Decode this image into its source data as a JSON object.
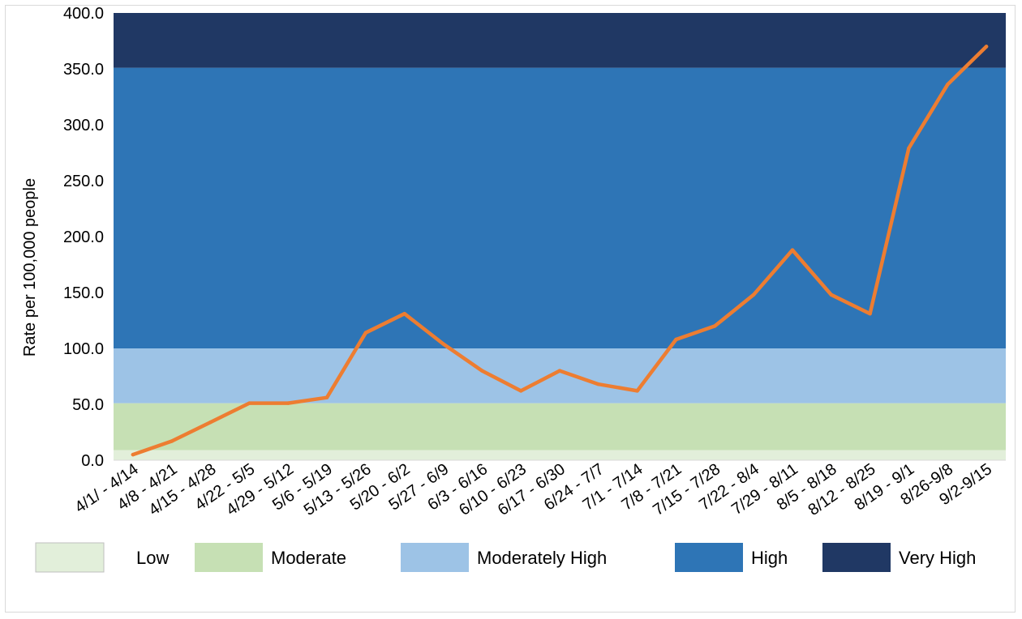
{
  "chart_data": {
    "type": "line",
    "title": "",
    "xlabel": "",
    "ylabel": "Rate per 100,000 people",
    "ylim": [
      0,
      400
    ],
    "yticks": [
      "0.0",
      "50.0",
      "100.0",
      "150.0",
      "200.0",
      "250.0",
      "300.0",
      "350.0",
      "400.0"
    ],
    "categories": [
      "4/1/ - 4/14",
      "4/8 - 4/21",
      "4/15 - 4/28",
      "4/22 - 5/5",
      "4/29 - 5/12",
      "5/6 - 5/19",
      "5/13 - 5/26",
      "5/20 - 6/2",
      "5/27 - 6/9",
      "6/3 - 6/16",
      "6/10 - 6/23",
      "6/17 - 6/30",
      "6/24 - 7/7",
      "7/1 - 7/14",
      "7/8 - 7/21",
      "7/15 - 7/28",
      "7/22 - 8/4",
      "7/29 - 8/11",
      "8/5 - 8/18",
      "8/12 - 8/25",
      "8/19 - 9/1",
      "8/26-9/8",
      "9/2-9/15"
    ],
    "series": [
      {
        "values": [
          5,
          17,
          34,
          51,
          51,
          56,
          114,
          131,
          104,
          80,
          62,
          80,
          68,
          62,
          108,
          120,
          148,
          188,
          148,
          131,
          279,
          336,
          370
        ],
        "color": "#ED7D31"
      }
    ],
    "bands": [
      {
        "label": "Low",
        "from": 0,
        "to": 9,
        "color": "#E2EFDA"
      },
      {
        "label": "Moderate",
        "from": 9,
        "to": 51,
        "color": "#C6E0B4"
      },
      {
        "label": "Moderately High",
        "from": 51,
        "to": 100,
        "color": "#9DC3E6"
      },
      {
        "label": "High",
        "from": 100,
        "to": 351,
        "color": "#2E75B6"
      },
      {
        "label": "Very High",
        "from": 351,
        "to": 400,
        "color": "#203864"
      }
    ],
    "legend": {
      "position": "bottom",
      "items": [
        {
          "label": "Low",
          "color": "#E2EFDA"
        },
        {
          "label": "Moderate",
          "color": "#C6E0B4"
        },
        {
          "label": "Moderately High",
          "color": "#9DC3E6"
        },
        {
          "label": "High",
          "color": "#2E75B6"
        },
        {
          "label": "Very High",
          "color": "#203864"
        }
      ]
    },
    "grid": false
  }
}
